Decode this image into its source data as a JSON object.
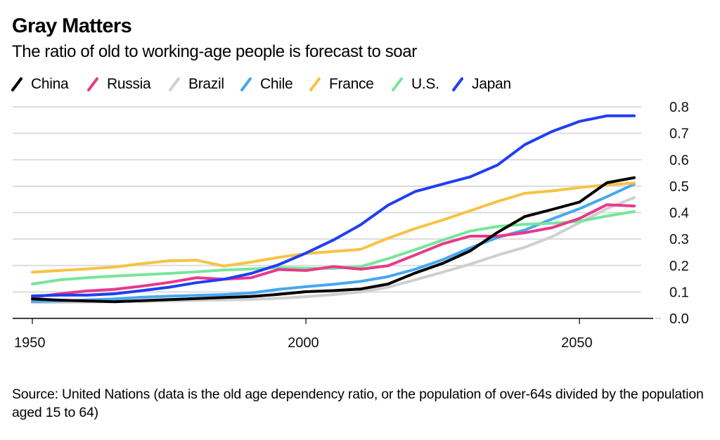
{
  "header": {
    "title": "Gray Matters",
    "subtitle": "The ratio of old to working-age people is forecast to soar"
  },
  "source": "Source: United Nations (data is the old age dependency ratio, or the population of over-64s divided by the population aged 15 to 64)",
  "chart_data": {
    "type": "line",
    "title": "Gray Matters",
    "subtitle": "The ratio of old to working-age people is forecast to soar",
    "xlabel": "",
    "ylabel": "",
    "x": [
      1950,
      1955,
      1960,
      1965,
      1970,
      1975,
      1980,
      1985,
      1990,
      1995,
      2000,
      2005,
      2010,
      2015,
      2020,
      2025,
      2030,
      2035,
      2040,
      2045,
      2050,
      2055,
      2060
    ],
    "xlim": [
      1950,
      2060
    ],
    "ylim": [
      0,
      0.8
    ],
    "x_ticks": [
      1950,
      2000,
      2050
    ],
    "x_tick_labels": [
      "1950",
      "2000",
      "2050"
    ],
    "y_ticks": [
      0.0,
      0.1,
      0.2,
      0.3,
      0.4,
      0.5,
      0.6,
      0.7,
      0.8
    ],
    "y_tick_labels": [
      "0.0",
      "0.1",
      "0.2",
      "0.3",
      "0.4",
      "0.5",
      "0.6",
      "0.7",
      "0.8"
    ],
    "y_axis_side": "right",
    "grid": true,
    "legend_position": "top",
    "series": [
      {
        "name": "China",
        "color": "#000000",
        "values": [
          0.074,
          0.069,
          0.066,
          0.063,
          0.067,
          0.071,
          0.075,
          0.079,
          0.083,
          0.091,
          0.101,
          0.105,
          0.111,
          0.13,
          0.172,
          0.208,
          0.255,
          0.325,
          0.385,
          0.412,
          0.44,
          0.513,
          0.532
        ]
      },
      {
        "name": "Russia",
        "color": "#e8398a",
        "values": [
          0.08,
          0.093,
          0.104,
          0.11,
          0.122,
          0.136,
          0.154,
          0.148,
          0.154,
          0.185,
          0.181,
          0.196,
          0.186,
          0.199,
          0.24,
          0.282,
          0.311,
          0.311,
          0.324,
          0.343,
          0.378,
          0.43,
          0.425
        ]
      },
      {
        "name": "Brazil",
        "color": "#cfcfcf",
        "values": [
          0.06,
          0.061,
          0.062,
          0.063,
          0.064,
          0.066,
          0.068,
          0.07,
          0.072,
          0.076,
          0.082,
          0.09,
          0.1,
          0.118,
          0.146,
          0.175,
          0.205,
          0.239,
          0.269,
          0.309,
          0.362,
          0.415,
          0.457
        ]
      },
      {
        "name": "Chile",
        "color": "#45a8f0",
        "values": [
          0.064,
          0.066,
          0.07,
          0.074,
          0.08,
          0.084,
          0.087,
          0.09,
          0.096,
          0.11,
          0.12,
          0.129,
          0.14,
          0.158,
          0.186,
          0.222,
          0.266,
          0.306,
          0.334,
          0.376,
          0.415,
          0.46,
          0.508
        ]
      },
      {
        "name": "France",
        "color": "#f6c343",
        "values": [
          0.175,
          0.181,
          0.187,
          0.194,
          0.207,
          0.218,
          0.22,
          0.198,
          0.213,
          0.231,
          0.245,
          0.253,
          0.261,
          0.303,
          0.34,
          0.372,
          0.407,
          0.442,
          0.473,
          0.482,
          0.495,
          0.505,
          0.512
        ]
      },
      {
        "name": "U.S.",
        "color": "#76e69a",
        "values": [
          0.13,
          0.146,
          0.154,
          0.16,
          0.165,
          0.17,
          0.176,
          0.183,
          0.187,
          0.192,
          0.19,
          0.189,
          0.196,
          0.226,
          0.26,
          0.296,
          0.33,
          0.348,
          0.356,
          0.36,
          0.367,
          0.387,
          0.404
        ]
      },
      {
        "name": "Japan",
        "color": "#1f3ef5",
        "values": [
          0.085,
          0.088,
          0.088,
          0.093,
          0.105,
          0.118,
          0.135,
          0.148,
          0.17,
          0.203,
          0.247,
          0.296,
          0.354,
          0.428,
          0.48,
          0.508,
          0.535,
          0.58,
          0.657,
          0.707,
          0.745,
          0.766,
          0.766
        ]
      }
    ]
  }
}
